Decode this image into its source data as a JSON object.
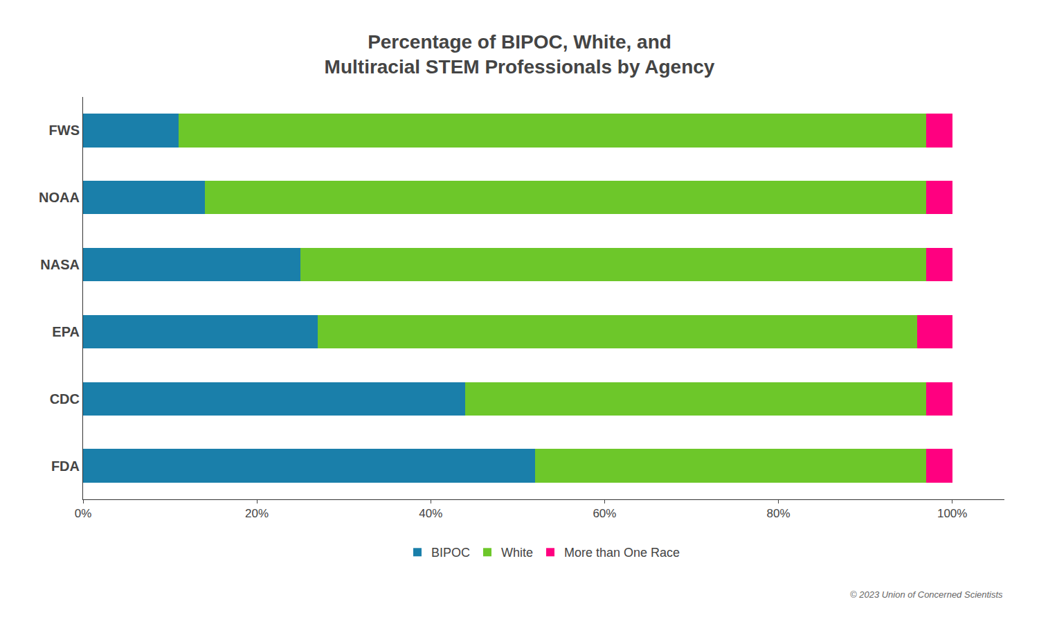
{
  "chart_data": {
    "type": "bar",
    "orientation": "horizontal",
    "stacked": true,
    "title": "Percentage of BIPOC, White, and\nMultiracial STEM Professionals by Agency",
    "categories": [
      "FWS",
      "NOAA",
      "NASA",
      "EPA",
      "CDC",
      "FDA"
    ],
    "series": [
      {
        "name": "BIPOC",
        "color": "#1A7FAA",
        "values": [
          11,
          14,
          25,
          27,
          44,
          52
        ]
      },
      {
        "name": "White",
        "color": "#6DC72A",
        "values": [
          86,
          83,
          72,
          69,
          53,
          45
        ]
      },
      {
        "name": "More than One Race",
        "color": "#FF0080",
        "values": [
          3,
          3,
          3,
          4,
          3,
          3
        ]
      }
    ],
    "xlim": [
      0,
      106
    ],
    "xticks": [
      {
        "value": 0,
        "label": "0%"
      },
      {
        "value": 20,
        "label": "20%"
      },
      {
        "value": 40,
        "label": "40%"
      },
      {
        "value": 60,
        "label": "60%"
      },
      {
        "value": 80,
        "label": "80%"
      },
      {
        "value": 100,
        "label": "100%"
      }
    ],
    "grid": false,
    "legend": "bottom",
    "annotations": [
      "© 2023 Union of Concerned Scientists"
    ]
  }
}
